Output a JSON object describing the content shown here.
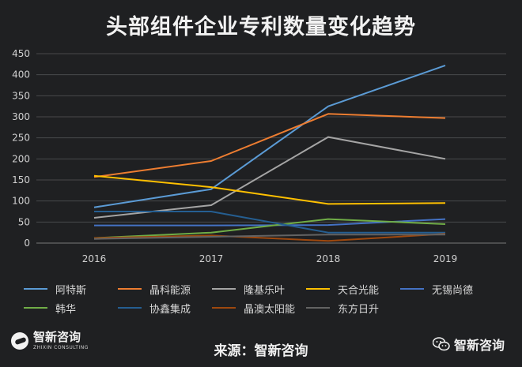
{
  "title": "头部组件企业专利数量变化趋势",
  "footer": {
    "source": "来源：智新咨询",
    "logo_left_cn": "智新咨询",
    "logo_left_en": "ZHIXIN CONSULTING",
    "logo_right": "智新咨询"
  },
  "chart_data": {
    "type": "line",
    "title": "头部组件企业专利数量变化趋势",
    "categories": [
      "2016",
      "2017",
      "2018",
      "2019"
    ],
    "ylim": [
      0,
      450
    ],
    "yticks": [
      "0",
      "50",
      "100",
      "150",
      "200",
      "250",
      "300",
      "350",
      "400",
      "450"
    ],
    "grid": true,
    "legend_position": "bottom",
    "series": [
      {
        "name": "阿特斯",
        "color": "#5b9bd5",
        "values": [
          85,
          128,
          325,
          422
        ]
      },
      {
        "name": "晶科能源",
        "color": "#ed7d31",
        "values": [
          157,
          195,
          307,
          297
        ]
      },
      {
        "name": "隆基乐叶",
        "color": "#a5a5a5",
        "values": [
          60,
          90,
          252,
          200
        ]
      },
      {
        "name": "天合光能",
        "color": "#ffc000",
        "values": [
          160,
          133,
          93,
          95
        ]
      },
      {
        "name": "无锡尚德",
        "color": "#4472c4",
        "values": [
          42,
          42,
          43,
          57
        ]
      },
      {
        "name": "韩华",
        "color": "#70ad47",
        "values": [
          12,
          25,
          57,
          45
        ]
      },
      {
        "name": "协鑫集成",
        "color": "#255e91",
        "values": [
          75,
          75,
          25,
          25
        ]
      },
      {
        "name": "晶澳太阳能",
        "color": "#9e480e",
        "values": [
          12,
          18,
          5,
          22
        ]
      },
      {
        "name": "东方日升",
        "color": "#636363",
        "values": [
          10,
          15,
          20,
          20
        ]
      }
    ]
  }
}
